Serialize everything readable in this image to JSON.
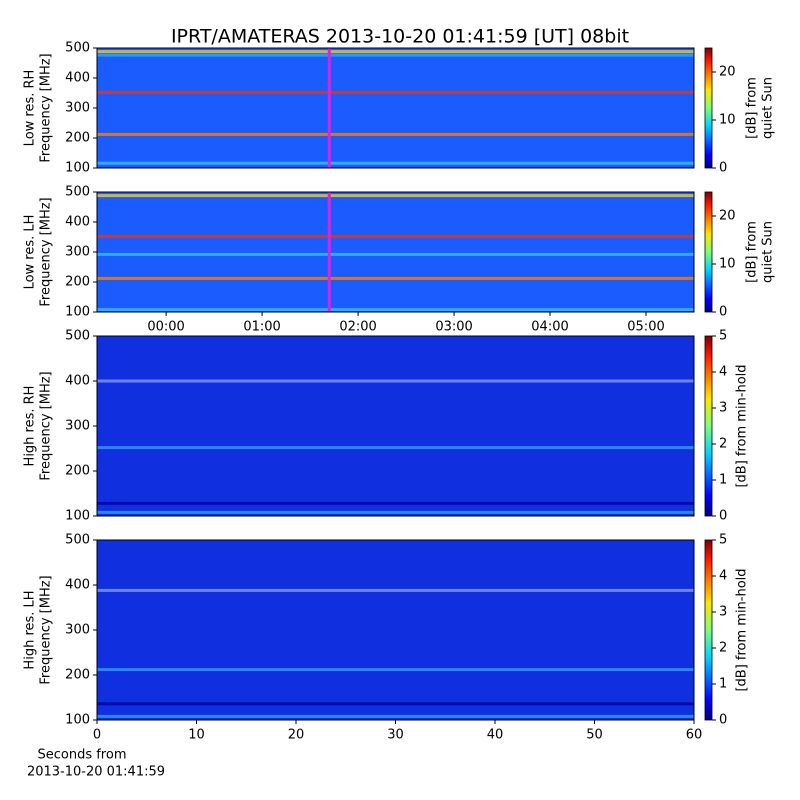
{
  "chart_data": [
    {
      "type": "heatmap",
      "title": "IPRT/AMATERAS 2013-10-20 01:41:59 [UT]   08bit",
      "ylabel": [
        "Low res. RH",
        "Frequency [MHz]"
      ],
      "ylim": [
        100,
        500
      ],
      "yticks": [
        100,
        200,
        300,
        400,
        500
      ],
      "xlim": [
        -0.72,
        5.5
      ],
      "marker_x": 1.7,
      "marker_color": "#e020e0",
      "colorbar": {
        "label": [
          "[dB] from",
          "quiet Sun"
        ],
        "lim": [
          0,
          25
        ],
        "ticks": [
          0,
          10,
          20
        ]
      }
    },
    {
      "type": "heatmap",
      "ylabel": [
        "Low res. LH",
        "Frequency [MHz]"
      ],
      "ylim": [
        100,
        500
      ],
      "yticks": [
        100,
        200,
        300,
        400,
        500
      ],
      "xlim": [
        -0.72,
        5.5
      ],
      "marker_x": 1.7,
      "marker_color": "#e020e0",
      "xticks": [
        {
          "value": 0,
          "label": "00:00"
        },
        {
          "value": 1,
          "label": "01:00"
        },
        {
          "value": 2,
          "label": "02:00"
        },
        {
          "value": 3,
          "label": "03:00"
        },
        {
          "value": 4,
          "label": "04:00"
        },
        {
          "value": 5,
          "label": "05:00"
        }
      ],
      "colorbar": {
        "label": [
          "[dB] from",
          "quiet Sun"
        ],
        "lim": [
          0,
          25
        ],
        "ticks": [
          0,
          10,
          20
        ]
      }
    },
    {
      "type": "heatmap",
      "ylabel": [
        "High res. RH",
        "Frequency [MHz]"
      ],
      "ylim": [
        100,
        500
      ],
      "yticks": [
        100,
        200,
        300,
        400,
        500
      ],
      "xlim": [
        0,
        60
      ],
      "colorbar": {
        "label": [
          "[dB] from min-hold"
        ],
        "lim": [
          0,
          5
        ],
        "ticks": [
          0,
          1,
          2,
          3,
          4,
          5
        ]
      }
    },
    {
      "type": "heatmap",
      "ylabel": [
        "High res. LH",
        "Frequency [MHz]"
      ],
      "ylim": [
        100,
        500
      ],
      "yticks": [
        100,
        200,
        300,
        400,
        500
      ],
      "xlim": [
        0,
        60
      ],
      "xticks": [
        0,
        10,
        20,
        30,
        40,
        50,
        60
      ],
      "xlabel": [
        "Seconds from",
        "2013-10-20 01:41:59"
      ],
      "colorbar": {
        "label": [
          "[dB] from min-hold"
        ],
        "lim": [
          0,
          5
        ],
        "ticks": [
          0,
          1,
          2,
          3,
          4,
          5
        ]
      }
    }
  ]
}
